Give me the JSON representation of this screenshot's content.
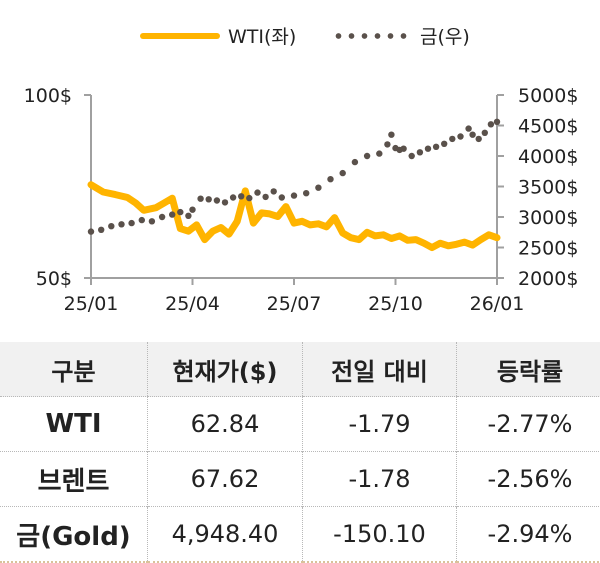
{
  "legend": {
    "wti_label": "WTI(좌)",
    "gold_label": "금(우)"
  },
  "colors": {
    "wti": "#ffb400",
    "gold": "#5a514b",
    "axis": "#a0a0a0",
    "header_bg": "#f1f1f1"
  },
  "chart_data": {
    "type": "line",
    "title": "",
    "x_ticks": [
      "25/01",
      "25/04",
      "25/07",
      "25/10",
      "26/01"
    ],
    "left_axis": {
      "label": "WTI",
      "ticks": [
        "100$",
        "50$"
      ],
      "ylim": [
        50,
        100
      ]
    },
    "right_axis": {
      "label": "금",
      "ticks": [
        "5000$",
        "4500$",
        "4000$",
        "3500$",
        "3000$",
        "2500$",
        "2000$"
      ],
      "ylim": [
        2000,
        5000
      ]
    },
    "legend_position": "top",
    "grid": false,
    "series": [
      {
        "name": "WTI(좌)",
        "axis": "left",
        "style": "solid-line",
        "color": "#ffb400",
        "x": [
          0,
          0.03,
          0.06,
          0.09,
          0.11,
          0.13,
          0.16,
          0.18,
          0.2,
          0.22,
          0.24,
          0.26,
          0.28,
          0.3,
          0.32,
          0.34,
          0.36,
          0.38,
          0.4,
          0.42,
          0.44,
          0.46,
          0.48,
          0.5,
          0.52,
          0.54,
          0.56,
          0.58,
          0.6,
          0.62,
          0.64,
          0.66,
          0.68,
          0.7,
          0.72,
          0.74,
          0.76,
          0.78,
          0.8,
          0.82,
          0.84,
          0.86,
          0.88,
          0.9,
          0.92,
          0.94,
          0.96,
          0.98,
          1.0
        ],
        "values": [
          75.5,
          73.5,
          72.8,
          72.0,
          70.5,
          68.5,
          69.2,
          70.5,
          71.8,
          63.5,
          62.8,
          64.5,
          60.5,
          62.8,
          63.8,
          62.0,
          65.5,
          73.8,
          65.0,
          67.8,
          67.5,
          66.8,
          69.5,
          65.0,
          65.5,
          64.5,
          64.8,
          64.0,
          66.5,
          62.3,
          61.0,
          60.5,
          62.5,
          61.5,
          61.8,
          60.8,
          61.5,
          60.3,
          60.5,
          59.5,
          58.3,
          59.5,
          58.8,
          59.2,
          59.8,
          59.0,
          60.5,
          61.8,
          61.0
        ]
      },
      {
        "name": "금(우)",
        "axis": "right",
        "style": "dotted",
        "color": "#5a514b",
        "x": [
          0,
          0.025,
          0.05,
          0.075,
          0.1,
          0.125,
          0.15,
          0.175,
          0.2,
          0.22,
          0.24,
          0.25,
          0.27,
          0.29,
          0.31,
          0.33,
          0.35,
          0.37,
          0.39,
          0.41,
          0.43,
          0.45,
          0.47,
          0.5,
          0.53,
          0.56,
          0.59,
          0.62,
          0.65,
          0.68,
          0.71,
          0.73,
          0.74,
          0.75,
          0.76,
          0.77,
          0.79,
          0.81,
          0.83,
          0.85,
          0.87,
          0.89,
          0.91,
          0.93,
          0.94,
          0.955,
          0.97,
          0.985,
          1.0
        ],
        "values": [
          2760,
          2790,
          2850,
          2880,
          2900,
          2950,
          2930,
          3000,
          3040,
          3080,
          3020,
          3120,
          3300,
          3290,
          3270,
          3240,
          3320,
          3340,
          3310,
          3400,
          3330,
          3420,
          3320,
          3350,
          3390,
          3480,
          3620,
          3720,
          3900,
          4000,
          4040,
          4190,
          4350,
          4130,
          4100,
          4120,
          4000,
          4060,
          4120,
          4150,
          4200,
          4280,
          4320,
          4450,
          4350,
          4280,
          4380,
          4520,
          4560
        ]
      }
    ]
  },
  "table": {
    "headers": [
      "구분",
      "현재가($)",
      "전일 대비",
      "등락률"
    ],
    "rows": [
      {
        "name": "WTI",
        "price": "62.84",
        "change": "-1.79",
        "rate": "-2.77%"
      },
      {
        "name": "브렌트",
        "price": "67.62",
        "change": "-1.78",
        "rate": "-2.56%"
      },
      {
        "name": "금(Gold)",
        "price": "4,948.40",
        "change": "-150.10",
        "rate": "-2.94%"
      }
    ]
  }
}
